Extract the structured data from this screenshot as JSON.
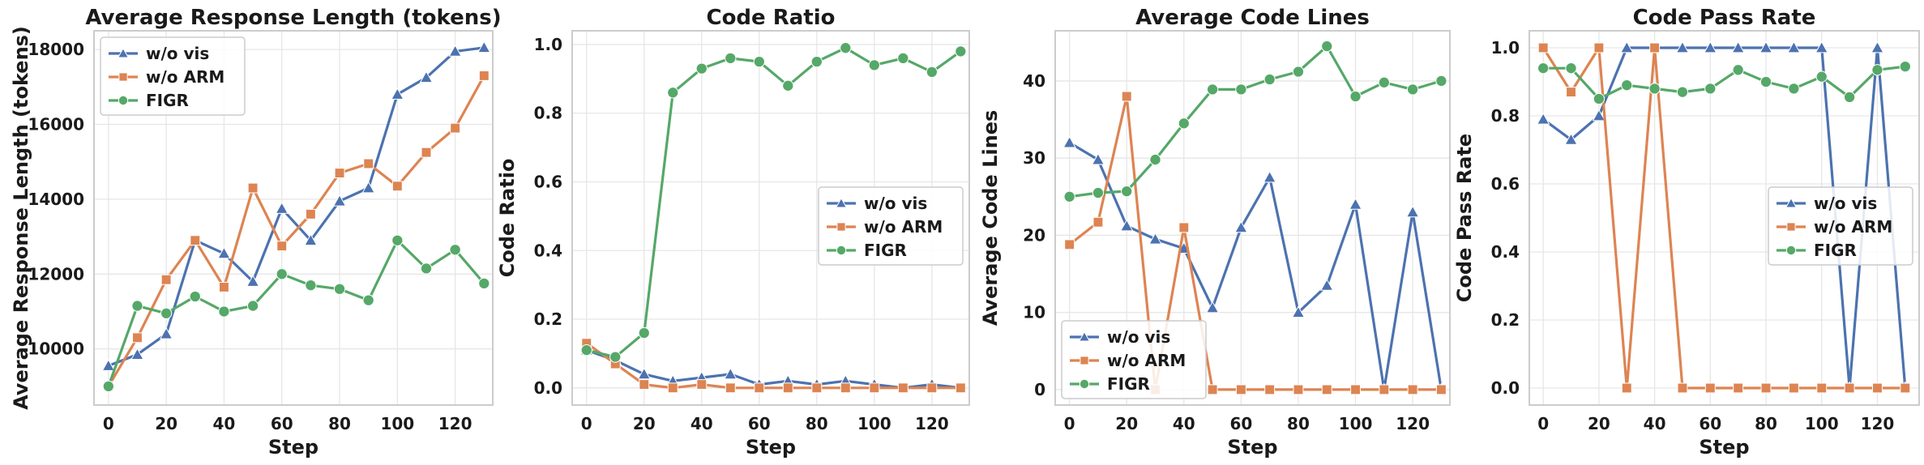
{
  "chart_data": [
    {
      "type": "line",
      "title": "Average Response Length (tokens)",
      "xlabel": "Step",
      "ylabel": "Average Response Length (tokens)",
      "xlim": [
        -5,
        133
      ],
      "ylim": [
        8500,
        18500
      ],
      "xticks": [
        0,
        20,
        40,
        60,
        80,
        100,
        120
      ],
      "xtick_labels": [
        "0",
        "20",
        "40",
        "60",
        "80",
        "100",
        "120"
      ],
      "yticks": [
        10000,
        12000,
        14000,
        16000,
        18000
      ],
      "ytick_labels": [
        "10000",
        "12000",
        "14000",
        "16000",
        "18000"
      ],
      "legend": "top-left",
      "grid": true,
      "x": [
        0,
        10,
        20,
        30,
        40,
        50,
        60,
        70,
        80,
        90,
        100,
        110,
        120,
        130
      ],
      "series": [
        {
          "name": "w/o vis",
          "marker": "triangle",
          "values": [
            9550,
            9850,
            10400,
            12900,
            12550,
            11800,
            13750,
            12900,
            13950,
            14300,
            16800,
            17250,
            17950,
            18050
          ]
        },
        {
          "name": "w/o ARM",
          "marker": "square",
          "values": [
            9000,
            10300,
            11850,
            12900,
            11650,
            14300,
            12750,
            13600,
            14700,
            14950,
            14350,
            15250,
            15900,
            17300
          ]
        },
        {
          "name": "FIGR",
          "marker": "circle",
          "values": [
            9000,
            11150,
            10950,
            11400,
            11000,
            11150,
            12000,
            11700,
            11600,
            11300,
            12900,
            12150,
            12650,
            11750
          ]
        }
      ]
    },
    {
      "type": "line",
      "title": "Code Ratio",
      "xlabel": "Step",
      "ylabel": "Code Ratio",
      "xlim": [
        -5,
        133
      ],
      "ylim": [
        -0.05,
        1.04
      ],
      "xticks": [
        0,
        20,
        40,
        60,
        80,
        100,
        120
      ],
      "xtick_labels": [
        "0",
        "20",
        "40",
        "60",
        "80",
        "100",
        "120"
      ],
      "yticks": [
        0.0,
        0.2,
        0.4,
        0.6,
        0.8,
        1.0
      ],
      "ytick_labels": [
        "0.0",
        "0.2",
        "0.4",
        "0.6",
        "0.8",
        "1.0"
      ],
      "legend": "center-right",
      "grid": true,
      "x": [
        0,
        10,
        20,
        30,
        40,
        50,
        60,
        70,
        80,
        90,
        100,
        110,
        120,
        130
      ],
      "series": [
        {
          "name": "w/o vis",
          "marker": "triangle",
          "values": [
            0.11,
            0.08,
            0.04,
            0.02,
            0.03,
            0.04,
            0.01,
            0.02,
            0.01,
            0.02,
            0.01,
            0.0,
            0.01,
            0.0
          ]
        },
        {
          "name": "w/o ARM",
          "marker": "square",
          "values": [
            0.13,
            0.07,
            0.01,
            0.0,
            0.01,
            0.0,
            0.0,
            0.0,
            0.0,
            0.0,
            0.0,
            0.0,
            0.0,
            0.0
          ]
        },
        {
          "name": "FIGR",
          "marker": "circle",
          "values": [
            0.11,
            0.09,
            0.16,
            0.86,
            0.93,
            0.96,
            0.95,
            0.88,
            0.95,
            0.99,
            0.94,
            0.96,
            0.92,
            0.98
          ]
        }
      ]
    },
    {
      "type": "line",
      "title": "Average Code Lines",
      "xlabel": "Step",
      "ylabel": "Average Code Lines",
      "xlim": [
        -5,
        133
      ],
      "ylim": [
        -2,
        46.5
      ],
      "xticks": [
        0,
        20,
        40,
        60,
        80,
        100,
        120
      ],
      "xtick_labels": [
        "0",
        "20",
        "40",
        "60",
        "80",
        "100",
        "120"
      ],
      "yticks": [
        0,
        10,
        20,
        30,
        40
      ],
      "ytick_labels": [
        "0",
        "10",
        "20",
        "30",
        "40"
      ],
      "legend": "bottom-left",
      "grid": true,
      "x": [
        0,
        10,
        20,
        30,
        40,
        50,
        60,
        70,
        80,
        90,
        100,
        110,
        120,
        130
      ],
      "series": [
        {
          "name": "w/o vis",
          "marker": "triangle",
          "values": [
            32.0,
            29.8,
            21.2,
            19.5,
            18.3,
            10.6,
            21.0,
            27.5,
            10.0,
            13.5,
            24.0,
            0.0,
            23.0,
            0.0
          ]
        },
        {
          "name": "w/o ARM",
          "marker": "square",
          "values": [
            18.8,
            21.7,
            38.0,
            0.0,
            21.0,
            0.0,
            0.0,
            0.0,
            0.0,
            0.0,
            0.0,
            0.0,
            0.0,
            0.0
          ]
        },
        {
          "name": "FIGR",
          "marker": "circle",
          "values": [
            25.0,
            25.5,
            25.7,
            29.8,
            34.5,
            38.9,
            38.9,
            40.2,
            41.2,
            44.5,
            38.0,
            39.8,
            38.9,
            40.0
          ]
        }
      ]
    },
    {
      "type": "line",
      "title": "Code Pass Rate",
      "xlabel": "Step",
      "ylabel": "Code Pass Rate",
      "xlim": [
        -5,
        135
      ],
      "ylim": [
        -0.05,
        1.05
      ],
      "xticks": [
        0,
        20,
        40,
        60,
        80,
        100,
        120
      ],
      "xtick_labels": [
        "0",
        "20",
        "40",
        "60",
        "80",
        "100",
        "120"
      ],
      "yticks": [
        0.0,
        0.2,
        0.4,
        0.6,
        0.8,
        1.0
      ],
      "ytick_labels": [
        "0.0",
        "0.2",
        "0.4",
        "0.6",
        "0.8",
        "1.0"
      ],
      "legend": "center-right",
      "grid": true,
      "x": [
        0,
        10,
        20,
        30,
        40,
        50,
        60,
        70,
        80,
        90,
        100,
        110,
        120,
        130
      ],
      "series": [
        {
          "name": "w/o vis",
          "marker": "triangle",
          "values": [
            0.79,
            0.73,
            0.8,
            1.0,
            1.0,
            1.0,
            1.0,
            1.0,
            1.0,
            1.0,
            1.0,
            0.0,
            1.0,
            0.0
          ]
        },
        {
          "name": "w/o ARM",
          "marker": "square",
          "values": [
            1.0,
            0.87,
            1.0,
            0.0,
            1.0,
            0.0,
            0.0,
            0.0,
            0.0,
            0.0,
            0.0,
            0.0,
            0.0,
            0.0
          ]
        },
        {
          "name": "FIGR",
          "marker": "circle",
          "values": [
            0.94,
            0.94,
            0.85,
            0.89,
            0.88,
            0.87,
            0.88,
            0.935,
            0.9,
            0.88,
            0.915,
            0.855,
            0.935,
            0.945
          ]
        }
      ]
    }
  ],
  "colors": {
    "w/o vis": "#4c72b0",
    "w/o ARM": "#dd8452",
    "FIGR": "#55a868",
    "grid": "#e6e6e6",
    "frame": "#cccccc"
  }
}
